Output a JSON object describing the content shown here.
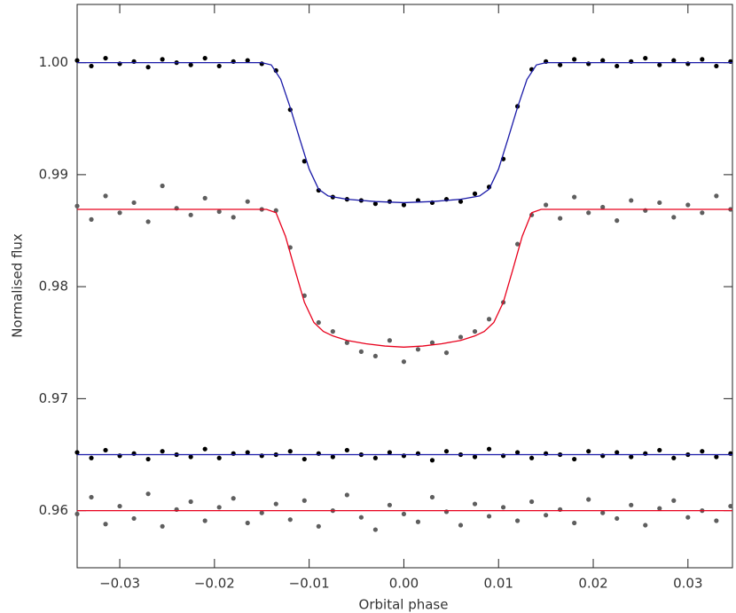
{
  "chart_data": {
    "type": "scatter",
    "xlabel": "Orbital phase",
    "ylabel": "Normalised flux",
    "xlim": [
      -0.0345,
      0.0347
    ],
    "ylim": [
      0.9549,
      1.0052
    ],
    "xticks": [
      {
        "value": -0.03,
        "label": "−0.03"
      },
      {
        "value": -0.02,
        "label": "−0.02"
      },
      {
        "value": -0.01,
        "label": "−0.01"
      },
      {
        "value": 0,
        "label": "0.00"
      },
      {
        "value": 0.01,
        "label": "0.01"
      },
      {
        "value": 0.02,
        "label": "0.02"
      },
      {
        "value": 0.03,
        "label": "0.03"
      }
    ],
    "yticks": [
      {
        "value": 0.96,
        "label": "0.96"
      },
      {
        "value": 0.97,
        "label": "0.97"
      },
      {
        "value": 0.98,
        "label": "0.98"
      },
      {
        "value": 0.99,
        "label": "0.99"
      },
      {
        "value": 1.0,
        "label": "1.00"
      }
    ],
    "series": [
      {
        "mode": "markers",
        "color": "#000000",
        "x": [
          -0.0345,
          -0.033,
          -0.0315,
          -0.03,
          -0.0285,
          -0.027,
          -0.0255,
          -0.024,
          -0.0225,
          -0.021,
          -0.0195,
          -0.018,
          -0.0165,
          -0.015,
          -0.0135,
          -0.012,
          -0.0105,
          -0.009,
          -0.0075,
          -0.006,
          -0.0045,
          -0.003,
          -0.0015,
          0,
          0.0015,
          0.003,
          0.0045,
          0.006,
          0.0075,
          0.009,
          0.0105,
          0.012,
          0.0135,
          0.015,
          0.0165,
          0.018,
          0.0195,
          0.021,
          0.0225,
          0.024,
          0.0255,
          0.027,
          0.0285,
          0.03,
          0.0315,
          0.033,
          0.0345
        ],
        "values": [
          1.0002,
          0.9997,
          1.0004,
          0.9999,
          1.0001,
          0.9996,
          1.0003,
          1.0,
          0.9998,
          1.0004,
          0.9997,
          1.0001,
          1.0002,
          0.9999,
          0.9993,
          0.9958,
          0.9912,
          0.9886,
          0.988,
          0.9878,
          0.9877,
          0.9874,
          0.9876,
          0.9873,
          0.9877,
          0.9875,
          0.9878,
          0.9876,
          0.9883,
          0.9889,
          0.9914,
          0.9961,
          0.9994,
          1.0001,
          0.9998,
          1.0003,
          0.9999,
          1.0002,
          0.9997,
          1.0001,
          1.0004,
          0.9998,
          1.0002,
          0.9999,
          1.0003,
          0.9997,
          1.0001
        ]
      },
      {
        "mode": "markers",
        "color": "#5e5e5e",
        "x": [
          -0.0345,
          -0.033,
          -0.0315,
          -0.03,
          -0.0285,
          -0.027,
          -0.0255,
          -0.024,
          -0.0225,
          -0.021,
          -0.0195,
          -0.018,
          -0.0165,
          -0.015,
          -0.0135,
          -0.012,
          -0.0105,
          -0.009,
          -0.0075,
          -0.006,
          -0.0045,
          -0.003,
          -0.0015,
          0,
          0.0015,
          0.003,
          0.0045,
          0.006,
          0.0075,
          0.009,
          0.0105,
          0.012,
          0.0135,
          0.015,
          0.0165,
          0.018,
          0.0195,
          0.021,
          0.0225,
          0.024,
          0.0255,
          0.027,
          0.0285,
          0.03,
          0.0315,
          0.033,
          0.0345
        ],
        "values": [
          0.9872,
          0.986,
          0.9881,
          0.9866,
          0.9875,
          0.9858,
          0.989,
          0.987,
          0.9864,
          0.9879,
          0.9867,
          0.9862,
          0.9876,
          0.9869,
          0.9868,
          0.9835,
          0.9792,
          0.9768,
          0.976,
          0.975,
          0.9742,
          0.9738,
          0.9752,
          0.9733,
          0.9744,
          0.975,
          0.9741,
          0.9755,
          0.976,
          0.9771,
          0.9786,
          0.9838,
          0.9864,
          0.9873,
          0.9861,
          0.988,
          0.9866,
          0.9871,
          0.9859,
          0.9877,
          0.9868,
          0.9875,
          0.9862,
          0.9873,
          0.9866,
          0.9881,
          0.9869
        ]
      },
      {
        "mode": "markers",
        "color": "#000000",
        "x": [
          -0.0345,
          -0.033,
          -0.0315,
          -0.03,
          -0.0285,
          -0.027,
          -0.0255,
          -0.024,
          -0.0225,
          -0.021,
          -0.0195,
          -0.018,
          -0.0165,
          -0.015,
          -0.0135,
          -0.012,
          -0.0105,
          -0.009,
          -0.0075,
          -0.006,
          -0.0045,
          -0.003,
          -0.0015,
          0,
          0.0015,
          0.003,
          0.0045,
          0.006,
          0.0075,
          0.009,
          0.0105,
          0.012,
          0.0135,
          0.015,
          0.0165,
          0.018,
          0.0195,
          0.021,
          0.0225,
          0.024,
          0.0255,
          0.027,
          0.0285,
          0.03,
          0.0315,
          0.033,
          0.0345
        ],
        "values": [
          0.9652,
          0.9647,
          0.9654,
          0.9649,
          0.9651,
          0.9646,
          0.9653,
          0.965,
          0.9648,
          0.9655,
          0.9647,
          0.9651,
          0.9652,
          0.9649,
          0.965,
          0.9653,
          0.9646,
          0.9651,
          0.9648,
          0.9654,
          0.965,
          0.9647,
          0.9652,
          0.9649,
          0.9651,
          0.9645,
          0.9653,
          0.965,
          0.9648,
          0.9655,
          0.9649,
          0.9652,
          0.9647,
          0.9651,
          0.965,
          0.9646,
          0.9653,
          0.9649,
          0.9652,
          0.9648,
          0.9651,
          0.9654,
          0.9647,
          0.965,
          0.9653,
          0.9648,
          0.9651
        ]
      },
      {
        "mode": "markers",
        "color": "#5e5e5e",
        "x": [
          -0.0345,
          -0.033,
          -0.0315,
          -0.03,
          -0.0285,
          -0.027,
          -0.0255,
          -0.024,
          -0.0225,
          -0.021,
          -0.0195,
          -0.018,
          -0.0165,
          -0.015,
          -0.0135,
          -0.012,
          -0.0105,
          -0.009,
          -0.0075,
          -0.006,
          -0.0045,
          -0.003,
          -0.0015,
          0,
          0.0015,
          0.003,
          0.0045,
          0.006,
          0.0075,
          0.009,
          0.0105,
          0.012,
          0.0135,
          0.015,
          0.0165,
          0.018,
          0.0195,
          0.021,
          0.0225,
          0.024,
          0.0255,
          0.027,
          0.0285,
          0.03,
          0.0315,
          0.033,
          0.0345
        ],
        "values": [
          0.9597,
          0.9612,
          0.9588,
          0.9604,
          0.9593,
          0.9615,
          0.9586,
          0.9601,
          0.9608,
          0.9591,
          0.9603,
          0.9611,
          0.9589,
          0.9598,
          0.9606,
          0.9592,
          0.9609,
          0.9586,
          0.96,
          0.9614,
          0.9594,
          0.9583,
          0.9605,
          0.9597,
          0.959,
          0.9612,
          0.9599,
          0.9587,
          0.9606,
          0.9595,
          0.9603,
          0.9591,
          0.9608,
          0.9596,
          0.9601,
          0.9589,
          0.961,
          0.9598,
          0.9593,
          0.9605,
          0.9587,
          0.9602,
          0.9609,
          0.9594,
          0.96,
          0.9591,
          0.9604
        ]
      },
      {
        "mode": "lines",
        "color": "#1a1aa8",
        "x": [
          -0.0345,
          -0.015,
          -0.014,
          -0.013,
          -0.012,
          -0.011,
          -0.01,
          -0.009,
          -0.008,
          -0.006,
          -0.003,
          0,
          0.003,
          0.006,
          0.008,
          0.009,
          0.01,
          0.011,
          0.012,
          0.013,
          0.014,
          0.015,
          0.0347
        ],
        "values": [
          1.0,
          1.0,
          0.9998,
          0.9985,
          0.996,
          0.9932,
          0.9905,
          0.9887,
          0.9881,
          0.9878,
          0.9876,
          0.9875,
          0.9876,
          0.9878,
          0.9881,
          0.9887,
          0.9905,
          0.9932,
          0.996,
          0.9985,
          0.9998,
          1.0,
          1.0
        ]
      },
      {
        "mode": "lines",
        "color": "#e8001c",
        "x": [
          -0.0345,
          -0.0145,
          -0.0135,
          -0.0125,
          -0.0115,
          -0.0105,
          -0.0095,
          -0.0085,
          -0.0075,
          -0.006,
          -0.004,
          -0.002,
          0,
          0.002,
          0.004,
          0.006,
          0.0075,
          0.0085,
          0.0095,
          0.0105,
          0.0115,
          0.0125,
          0.0135,
          0.0145,
          0.0347
        ],
        "values": [
          0.9869,
          0.9869,
          0.9866,
          0.9845,
          0.9815,
          0.9786,
          0.9768,
          0.976,
          0.9756,
          0.9752,
          0.9749,
          0.9747,
          0.9746,
          0.9747,
          0.9749,
          0.9752,
          0.9756,
          0.976,
          0.9768,
          0.9786,
          0.9815,
          0.9845,
          0.9866,
          0.9869,
          0.9869
        ]
      },
      {
        "mode": "lines",
        "color": "#1a1aa8",
        "x": [
          -0.0345,
          0.0347
        ],
        "values": [
          0.965,
          0.965
        ]
      },
      {
        "mode": "lines",
        "color": "#e8001c",
        "x": [
          -0.0345,
          0.0347
        ],
        "values": [
          0.96,
          0.96
        ]
      }
    ]
  }
}
